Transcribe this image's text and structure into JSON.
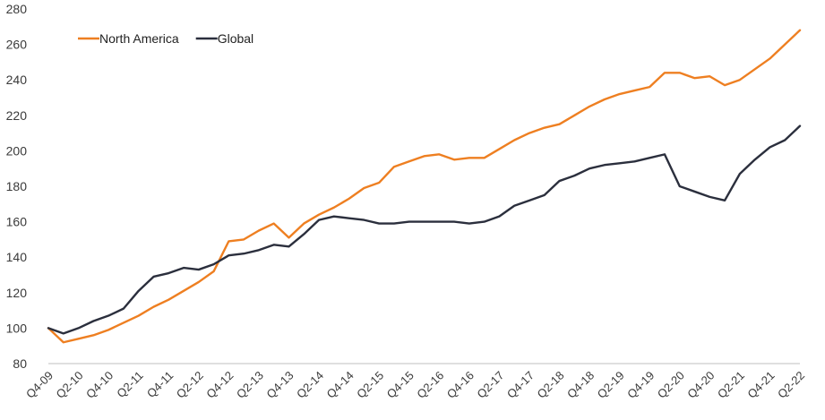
{
  "chart_data": {
    "type": "line",
    "title": "",
    "xlabel": "",
    "ylabel": "",
    "ylim": [
      80,
      280
    ],
    "yticks": [
      80,
      100,
      120,
      140,
      160,
      180,
      200,
      220,
      240,
      260,
      280
    ],
    "grid": false,
    "legend_position": "top-left",
    "x": [
      "Q4-09",
      "Q1-10",
      "Q2-10",
      "Q3-10",
      "Q4-10",
      "Q1-11",
      "Q2-11",
      "Q3-11",
      "Q4-11",
      "Q1-12",
      "Q2-12",
      "Q3-12",
      "Q4-12",
      "Q1-13",
      "Q2-13",
      "Q3-13",
      "Q4-13",
      "Q1-14",
      "Q2-14",
      "Q3-14",
      "Q4-14",
      "Q1-15",
      "Q2-15",
      "Q3-15",
      "Q4-15",
      "Q1-16",
      "Q2-16",
      "Q3-16",
      "Q4-16",
      "Q1-17",
      "Q2-17",
      "Q3-17",
      "Q4-17",
      "Q1-18",
      "Q2-18",
      "Q3-18",
      "Q4-18",
      "Q1-19",
      "Q2-19",
      "Q3-19",
      "Q4-19",
      "Q1-20",
      "Q2-20",
      "Q3-20",
      "Q4-20",
      "Q1-21",
      "Q2-21",
      "Q3-21",
      "Q4-21",
      "Q1-22",
      "Q2-22"
    ],
    "xtick_labels": [
      "Q4-09",
      "Q2-10",
      "Q4-10",
      "Q2-11",
      "Q4-11",
      "Q2-12",
      "Q4-12",
      "Q2-13",
      "Q4-13",
      "Q2-14",
      "Q4-14",
      "Q2-15",
      "Q4-15",
      "Q2-16",
      "Q4-16",
      "Q2-17",
      "Q4-17",
      "Q2-18",
      "Q4-18",
      "Q2-19",
      "Q4-19",
      "Q2-20",
      "Q4-20",
      "Q2-21",
      "Q4-21",
      "Q2-22"
    ],
    "series": [
      {
        "name": "North America",
        "color": "#ee7f21",
        "values": [
          100,
          92,
          94,
          96,
          99,
          103,
          107,
          112,
          116,
          121,
          126,
          132,
          149,
          150,
          155,
          159,
          151,
          159,
          164,
          168,
          173,
          179,
          182,
          191,
          194,
          197,
          198,
          195,
          196,
          196,
          201,
          206,
          210,
          213,
          215,
          220,
          225,
          229,
          232,
          234,
          236,
          244,
          244,
          241,
          242,
          237,
          240,
          246,
          252,
          260,
          268
        ]
      },
      {
        "name": "Global",
        "color": "#2b2f3d",
        "values": [
          100,
          97,
          100,
          104,
          107,
          111,
          121,
          129,
          131,
          134,
          133,
          136,
          141,
          142,
          144,
          147,
          146,
          153,
          161,
          163,
          162,
          161,
          159,
          159,
          160,
          160,
          160,
          160,
          159,
          160,
          163,
          169,
          172,
          175,
          183,
          186,
          190,
          192,
          193,
          194,
          196,
          198,
          180,
          177,
          174,
          172,
          187,
          195,
          202,
          206,
          214
        ]
      }
    ]
  }
}
